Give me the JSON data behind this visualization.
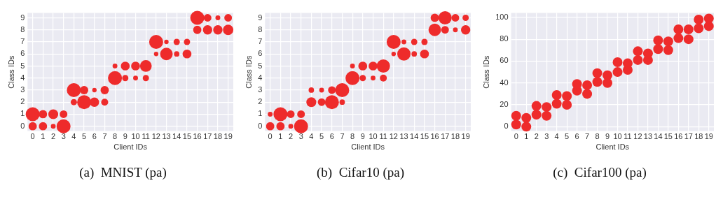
{
  "chart_data": [
    {
      "type": "bubble",
      "title": "(a)  MNIST (pa)",
      "xlabel": "Client IDs",
      "ylabel": "Class IDs",
      "color": "#ee2b2b",
      "grid": true,
      "xlim": [
        -0.5,
        19.5
      ],
      "xticks": [
        0,
        1,
        2,
        3,
        4,
        5,
        6,
        7,
        8,
        9,
        10,
        11,
        12,
        13,
        14,
        15,
        16,
        17,
        18,
        19
      ],
      "ylim": [
        -0.4,
        9.4
      ],
      "yticks": [
        0,
        1,
        2,
        3,
        4,
        5,
        6,
        7,
        8,
        9
      ],
      "x": [
        0,
        0,
        1,
        1,
        2,
        2,
        3,
        3,
        4,
        4,
        5,
        5,
        6,
        6,
        7,
        7,
        8,
        8,
        9,
        9,
        10,
        10,
        11,
        11,
        12,
        12,
        13,
        13,
        14,
        14,
        15,
        15,
        16,
        16,
        17,
        17,
        18,
        18,
        19,
        19
      ],
      "values": [
        1,
        0,
        1,
        0,
        1,
        0,
        1,
        0,
        3,
        2,
        3,
        2,
        3,
        2,
        3,
        2,
        5,
        4,
        5,
        4,
        5,
        4,
        5,
        4,
        7,
        6,
        7,
        6,
        7,
        6,
        7,
        6,
        9,
        8,
        9,
        8,
        9,
        8,
        9,
        8
      ],
      "sizes": [
        1,
        0.35,
        0.35,
        0.35,
        0.5,
        0.12,
        0.3,
        1,
        1,
        0.2,
        0.35,
        1,
        0.1,
        0.45,
        0.35,
        0.25,
        0.12,
        1,
        0.4,
        0.2,
        0.4,
        0.12,
        0.7,
        0.2,
        1,
        0.1,
        0.1,
        0.8,
        0.2,
        0.15,
        0.2,
        0.4,
        1,
        0.35,
        0.3,
        0.45,
        0.12,
        0.45,
        0.3,
        0.55
      ]
    },
    {
      "type": "bubble",
      "title": "(b)  Cifar10 (pa)",
      "xlabel": "Client IDs",
      "ylabel": "Class IDs",
      "color": "#ee2b2b",
      "grid": true,
      "xlim": [
        -0.5,
        19.5
      ],
      "xticks": [
        0,
        1,
        2,
        3,
        4,
        5,
        6,
        7,
        8,
        9,
        10,
        11,
        12,
        13,
        14,
        15,
        16,
        17,
        18,
        19
      ],
      "ylim": [
        -0.4,
        9.4
      ],
      "yticks": [
        0,
        1,
        2,
        3,
        4,
        5,
        6,
        7,
        8,
        9
      ],
      "x": [
        0,
        0,
        1,
        1,
        2,
        2,
        3,
        3,
        4,
        4,
        5,
        5,
        6,
        6,
        7,
        7,
        8,
        8,
        9,
        9,
        10,
        10,
        11,
        11,
        12,
        12,
        13,
        13,
        14,
        14,
        15,
        15,
        16,
        16,
        17,
        17,
        18,
        18,
        19,
        19
      ],
      "values": [
        1,
        0,
        1,
        0,
        1,
        0,
        1,
        0,
        3,
        2,
        3,
        2,
        3,
        2,
        3,
        2,
        5,
        4,
        5,
        4,
        5,
        4,
        5,
        4,
        7,
        6,
        7,
        6,
        7,
        6,
        7,
        6,
        9,
        8,
        9,
        8,
        9,
        8,
        9,
        8
      ],
      "sizes": [
        0.12,
        0.35,
        1,
        0.35,
        0.3,
        0.12,
        0.3,
        1,
        0.15,
        0.5,
        0.12,
        0.3,
        0.3,
        1,
        1,
        0.15,
        0.12,
        1,
        0.4,
        0.2,
        0.4,
        0.12,
        0.9,
        0.25,
        1,
        0.1,
        0.12,
        0.9,
        0.2,
        0.15,
        0.2,
        0.4,
        0.35,
        0.8,
        0.9,
        0.3,
        0.3,
        0.12,
        0.2,
        0.45
      ]
    },
    {
      "type": "bubble",
      "title": "(c)  Cifar100 (pa)",
      "xlabel": "Client IDs",
      "ylabel": "Class IDs",
      "color": "#ee2b2b",
      "grid": true,
      "xlim": [
        -0.5,
        19.5
      ],
      "xticks": [
        0,
        1,
        2,
        3,
        4,
        5,
        6,
        7,
        8,
        9,
        10,
        11,
        12,
        13,
        14,
        15,
        16,
        17,
        18,
        19
      ],
      "ylim": [
        -4,
        104
      ],
      "yticks": [
        0,
        20,
        40,
        60,
        80,
        100
      ],
      "x": [
        0,
        0,
        1,
        1,
        2,
        2,
        3,
        3,
        4,
        4,
        5,
        5,
        6,
        6,
        7,
        7,
        8,
        8,
        9,
        9,
        10,
        10,
        11,
        11,
        12,
        12,
        13,
        13,
        14,
        14,
        15,
        15,
        16,
        16,
        17,
        17,
        18,
        18,
        19,
        19
      ],
      "values": [
        2,
        10,
        0,
        8,
        11,
        19,
        10,
        18,
        21,
        29,
        20,
        28,
        33,
        39,
        30,
        38,
        41,
        49,
        40,
        47,
        50,
        59,
        52,
        58,
        61,
        69,
        61,
        67,
        71,
        79,
        70,
        78,
        81,
        89,
        80,
        89,
        90,
        98,
        92,
        99
      ],
      "sizes": [
        1,
        1,
        1,
        1,
        1,
        1,
        1,
        1,
        1,
        1,
        1,
        1,
        1,
        1,
        1,
        1,
        1,
        1,
        1,
        1,
        1,
        1,
        1,
        1,
        1,
        1,
        1,
        1,
        1,
        1,
        1,
        1,
        1,
        1,
        1,
        1,
        1,
        1,
        1,
        1
      ]
    }
  ]
}
